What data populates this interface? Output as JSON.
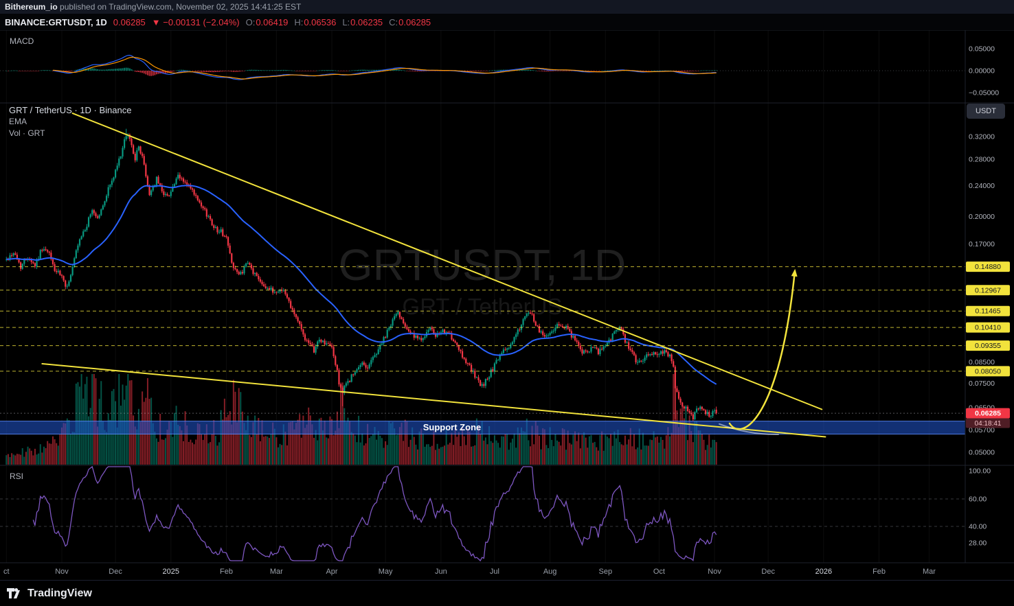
{
  "header": {
    "publisher": "Bithereum_io",
    "published_text": " published on TradingView.com, November 02, 2025 14:41:25 EST"
  },
  "symbol_bar": {
    "symbol": "BINANCE:GRTUSDT, 1D",
    "last_price": "0.06285",
    "change": "▼ −0.00131 (−2.04%)",
    "ohlc": [
      {
        "label": "O:",
        "value": "0.06419"
      },
      {
        "label": "H:",
        "value": "0.06536"
      },
      {
        "label": "L:",
        "value": "0.06235"
      },
      {
        "label": "C:",
        "value": "0.06285"
      }
    ]
  },
  "macd_pane": {
    "label": "MACD"
  },
  "main_pane": {
    "title": "GRT / TetherUS · 1D · Binance",
    "ema_label": "EMA",
    "vol_label": "Vol · GRT",
    "watermark_title": "GRTUSDT, 1D",
    "watermark_subtitle": "GRT / TetherUS",
    "currency_button": "USDT",
    "support_zone_label": "Support Zone"
  },
  "rsi_pane": {
    "label": "RSI"
  },
  "footer": {
    "brand": "TradingView"
  },
  "chart_data": {
    "type": "candlestick",
    "symbol": "GRTUSDT",
    "interval": "1D",
    "exchange": "Binance",
    "price_scale": "log",
    "last": {
      "open": 0.06419,
      "high": 0.06536,
      "low": 0.06235,
      "close": 0.06285,
      "change": -0.00131,
      "change_pct": -2.04
    },
    "countdown": "04:18:41",
    "price_axis_plain": [
      "0.32000",
      "0.28000",
      "0.24000",
      "0.20000",
      "0.17000",
      "0.08500",
      "0.07500",
      "0.06500",
      "0.05700",
      "0.05000"
    ],
    "level_tags": [
      "0.14880",
      "0.12967",
      "0.11465",
      "0.10410",
      "0.09355",
      "0.08050"
    ],
    "macd_axis": [
      "0.05000",
      "0.00000",
      "−0.05000"
    ],
    "rsi_axis": [
      "100.00",
      "60.00",
      "40.00",
      "28.00"
    ],
    "support_zone": {
      "top": 0.06,
      "bottom": 0.0556
    },
    "time_axis": [
      [
        "ct",
        0
      ],
      [
        "Nov",
        31
      ],
      [
        "Dec",
        61
      ],
      [
        "2025",
        92
      ],
      [
        "Feb",
        123
      ],
      [
        "Mar",
        151
      ],
      [
        "Apr",
        182
      ],
      [
        "May",
        212
      ],
      [
        "Jun",
        243
      ],
      [
        "Jul",
        273
      ],
      [
        "Aug",
        304
      ],
      [
        "Sep",
        335
      ],
      [
        "Oct",
        365
      ],
      [
        "Nov",
        396
      ],
      [
        "Dec",
        426
      ],
      [
        "2026",
        457
      ],
      [
        "Feb",
        488
      ],
      [
        "Mar",
        516
      ]
    ],
    "indicators": {
      "ema_period": 50,
      "macd": [
        12,
        26,
        9
      ],
      "rsi_period": 14
    },
    "close_anchors": [
      [
        0,
        0.155
      ],
      [
        4,
        0.162
      ],
      [
        8,
        0.149
      ],
      [
        12,
        0.158
      ],
      [
        16,
        0.15
      ],
      [
        20,
        0.166
      ],
      [
        24,
        0.16
      ],
      [
        27,
        0.146
      ],
      [
        31,
        0.14
      ],
      [
        33,
        0.131
      ],
      [
        36,
        0.141
      ],
      [
        39,
        0.162
      ],
      [
        42,
        0.178
      ],
      [
        45,
        0.19
      ],
      [
        48,
        0.208
      ],
      [
        51,
        0.198
      ],
      [
        54,
        0.212
      ],
      [
        57,
        0.236
      ],
      [
        60,
        0.252
      ],
      [
        63,
        0.278
      ],
      [
        66,
        0.31
      ],
      [
        68,
        0.325
      ],
      [
        70,
        0.303
      ],
      [
        72,
        0.282
      ],
      [
        74,
        0.3
      ],
      [
        76,
        0.286
      ],
      [
        78,
        0.252
      ],
      [
        80,
        0.228
      ],
      [
        82,
        0.238
      ],
      [
        84,
        0.249
      ],
      [
        86,
        0.238
      ],
      [
        88,
        0.23
      ],
      [
        90,
        0.224
      ],
      [
        93,
        0.238
      ],
      [
        96,
        0.252
      ],
      [
        99,
        0.247
      ],
      [
        102,
        0.238
      ],
      [
        105,
        0.228
      ],
      [
        108,
        0.214
      ],
      [
        111,
        0.206
      ],
      [
        114,
        0.196
      ],
      [
        117,
        0.186
      ],
      [
        120,
        0.183
      ],
      [
        123,
        0.176
      ],
      [
        125,
        0.16
      ],
      [
        127,
        0.149
      ],
      [
        130,
        0.141
      ],
      [
        133,
        0.147
      ],
      [
        135,
        0.152
      ],
      [
        138,
        0.144
      ],
      [
        141,
        0.139
      ],
      [
        144,
        0.134
      ],
      [
        147,
        0.13
      ],
      [
        151,
        0.128
      ],
      [
        154,
        0.131
      ],
      [
        157,
        0.124
      ],
      [
        160,
        0.116
      ],
      [
        163,
        0.108
      ],
      [
        166,
        0.1
      ],
      [
        169,
        0.094
      ],
      [
        172,
        0.091
      ],
      [
        175,
        0.097
      ],
      [
        178,
        0.095
      ],
      [
        182,
        0.0925
      ],
      [
        184,
        0.084
      ],
      [
        186,
        0.0755
      ],
      [
        188,
        0.071
      ],
      [
        190,
        0.0745
      ],
      [
        193,
        0.078
      ],
      [
        196,
        0.0805
      ],
      [
        199,
        0.0845
      ],
      [
        202,
        0.0825
      ],
      [
        205,
        0.087
      ],
      [
        208,
        0.0915
      ],
      [
        210,
        0.0955
      ],
      [
        212,
        0.0985
      ],
      [
        214,
        0.104
      ],
      [
        217,
        0.111
      ],
      [
        219,
        0.1135
      ],
      [
        222,
        0.108
      ],
      [
        225,
        0.1025
      ],
      [
        228,
        0.0985
      ],
      [
        231,
        0.0965
      ],
      [
        234,
        0.1
      ],
      [
        237,
        0.103
      ],
      [
        240,
        0.099
      ],
      [
        243,
        0.1005
      ],
      [
        246,
        0.1025
      ],
      [
        249,
        0.0975
      ],
      [
        252,
        0.0925
      ],
      [
        255,
        0.088
      ],
      [
        258,
        0.0845
      ],
      [
        261,
        0.0795
      ],
      [
        264,
        0.0755
      ],
      [
        266,
        0.0735
      ],
      [
        269,
        0.0775
      ],
      [
        272,
        0.0815
      ],
      [
        276,
        0.088
      ],
      [
        279,
        0.0915
      ],
      [
        282,
        0.094
      ],
      [
        285,
        0.0995
      ],
      [
        288,
        0.106
      ],
      [
        291,
        0.1115
      ],
      [
        293,
        0.1135
      ],
      [
        296,
        0.106
      ],
      [
        299,
        0.101
      ],
      [
        302,
        0.0985
      ],
      [
        304,
        0.1015
      ],
      [
        307,
        0.104
      ],
      [
        310,
        0.1065
      ],
      [
        313,
        0.1035
      ],
      [
        316,
        0.0995
      ],
      [
        319,
        0.0945
      ],
      [
        322,
        0.0905
      ],
      [
        325,
        0.089
      ],
      [
        328,
        0.0925
      ],
      [
        331,
        0.0895
      ],
      [
        335,
        0.094
      ],
      [
        338,
        0.0975
      ],
      [
        341,
        0.1025
      ],
      [
        343,
        0.104
      ],
      [
        346,
        0.0965
      ],
      [
        349,
        0.0905
      ],
      [
        352,
        0.086
      ],
      [
        355,
        0.0845
      ],
      [
        358,
        0.0875
      ],
      [
        361,
        0.0895
      ],
      [
        365,
        0.0895
      ],
      [
        368,
        0.0905
      ],
      [
        371,
        0.0875
      ],
      [
        373,
        0.0815
      ],
      [
        374,
        0.0735
      ],
      [
        376,
        0.0695
      ],
      [
        378,
        0.066
      ],
      [
        380,
        0.0645
      ],
      [
        382,
        0.0635
      ],
      [
        384,
        0.0615
      ],
      [
        386,
        0.0645
      ],
      [
        388,
        0.0655
      ],
      [
        390,
        0.0635
      ],
      [
        392,
        0.0625
      ],
      [
        394,
        0.061
      ],
      [
        395,
        0.063
      ],
      [
        396,
        0.0642
      ],
      [
        397,
        0.06285
      ]
    ],
    "volume_anchors": [
      [
        0,
        0.12
      ],
      [
        20,
        0.18
      ],
      [
        31,
        0.3
      ],
      [
        38,
        0.55
      ],
      [
        42,
        1.0
      ],
      [
        46,
        0.65
      ],
      [
        50,
        0.8
      ],
      [
        55,
        0.6
      ],
      [
        61,
        0.65
      ],
      [
        67,
        0.9
      ],
      [
        72,
        0.6
      ],
      [
        79,
        0.7
      ],
      [
        85,
        0.45
      ],
      [
        92,
        0.5
      ],
      [
        99,
        0.42
      ],
      [
        108,
        0.38
      ],
      [
        118,
        0.35
      ],
      [
        123,
        0.55
      ],
      [
        127,
        0.75
      ],
      [
        133,
        0.5
      ],
      [
        140,
        0.38
      ],
      [
        151,
        0.32
      ],
      [
        160,
        0.4
      ],
      [
        169,
        0.45
      ],
      [
        178,
        0.35
      ],
      [
        184,
        0.55
      ],
      [
        188,
        0.65
      ],
      [
        195,
        0.4
      ],
      [
        205,
        0.3
      ],
      [
        212,
        0.32
      ],
      [
        218,
        0.42
      ],
      [
        228,
        0.3
      ],
      [
        240,
        0.26
      ],
      [
        250,
        0.3
      ],
      [
        261,
        0.33
      ],
      [
        266,
        0.4
      ],
      [
        273,
        0.28
      ],
      [
        285,
        0.3
      ],
      [
        292,
        0.38
      ],
      [
        300,
        0.3
      ],
      [
        310,
        0.3
      ],
      [
        320,
        0.26
      ],
      [
        330,
        0.24
      ],
      [
        338,
        0.3
      ],
      [
        343,
        0.36
      ],
      [
        352,
        0.3
      ],
      [
        362,
        0.26
      ],
      [
        370,
        0.3
      ],
      [
        374,
        0.9
      ],
      [
        377,
        0.6
      ],
      [
        381,
        0.45
      ],
      [
        385,
        0.35
      ],
      [
        390,
        0.3
      ],
      [
        394,
        0.25
      ],
      [
        397,
        0.22
      ]
    ],
    "high_overrides": [
      [
        67,
        0.335
      ]
    ],
    "low_overrides": [
      [
        188,
        0.0655
      ],
      [
        374,
        0.0607
      ]
    ],
    "trendlines": [
      {
        "name": "descending-resistance-line",
        "from": [
          37,
          0.367
        ],
        "to": [
          456,
          0.0643
        ]
      },
      {
        "name": "descending-support-line",
        "from": [
          20,
          0.0841
        ],
        "to": [
          458,
          0.0547
        ]
      }
    ],
    "white_curve": [
      [
        398.7,
        0.059
      ],
      [
        415.2,
        0.0553
      ],
      [
        431.7,
        0.0555
      ]
    ],
    "arrow": [
      [
        404.4,
        0.0592
      ],
      [
        411.4,
        0.0529
      ],
      [
        432.5,
        0.0609
      ],
      [
        440.9,
        0.1452
      ]
    ],
    "colors": {
      "up": "#089981",
      "down": "#f23645",
      "ema": "#2962ff",
      "macd_line": "#2962ff",
      "macd_signal": "#ff9800",
      "rsi": "#7e57c2",
      "drawing": "#f2e33c",
      "support_zone": "#2157d4",
      "tag_bg": "#f2e33c",
      "last_tag_bg": "#f23645",
      "countdown_bg": "#4f1d25"
    }
  }
}
